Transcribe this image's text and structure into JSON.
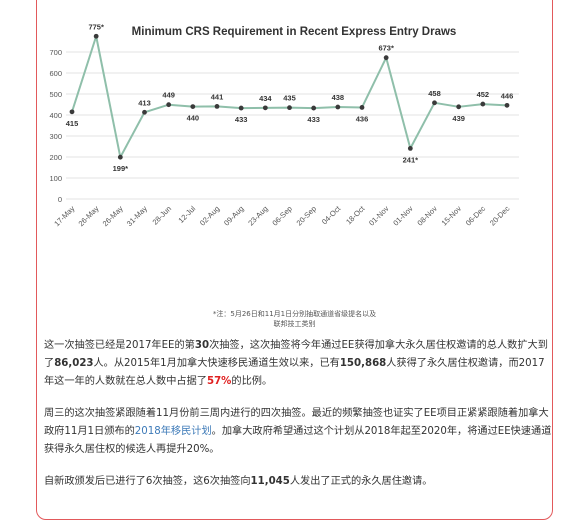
{
  "chart_data": {
    "type": "line",
    "title": "Minimum CRS Requirement in Recent Express Entry Draws",
    "categories": [
      "17-May",
      "26-May",
      "26-May",
      "31-May",
      "28-Jun",
      "12-Jul",
      "02-Aug",
      "09-Aug",
      "23-Aug",
      "06-Sep",
      "20-Sep",
      "04-Oct",
      "18-Oct",
      "01-Nov",
      "01-Nov",
      "08-Nov",
      "15-Nov",
      "06-Dec",
      "20-Dec"
    ],
    "values": [
      415,
      775,
      199,
      413,
      449,
      440,
      441,
      433,
      434,
      435,
      433,
      438,
      436,
      673,
      241,
      458,
      439,
      452,
      446
    ],
    "value_labels": [
      "415",
      "775*",
      "199*",
      "413",
      "449",
      "440",
      "441",
      "433",
      "434",
      "435",
      "433",
      "438",
      "436",
      "673*",
      "241*",
      "458",
      "439",
      "452",
      "446"
    ],
    "ylim": [
      0,
      700
    ],
    "yticks": [
      0,
      100,
      200,
      300,
      400,
      500,
      600,
      700
    ],
    "grid": true,
    "legend": "none",
    "colors": {
      "line": "#8fbfaa",
      "point": "#3a3a3a",
      "grid": "#e3e3e3",
      "label": "#333333"
    }
  },
  "note": {
    "line1": "*注：5月26日和11月1日分别抽取通道省级提名以及",
    "line2": "联邦技工类别"
  },
  "article": {
    "p1": {
      "t1": "这一次抽签已经是2017年EE的第",
      "b1": "30",
      "t2": "次抽签，这次抽签将今年通过EE获得加拿大永久居住权邀请的总人数扩大到了",
      "b2": "86,023",
      "t3": "人。从2015年1月加拿大快速移民通道生效以来，已有",
      "b3": "150,868",
      "t4": "人获得了永久居住权邀请，而2017年这一年的人数就在总人数中占据了",
      "pct": "57%",
      "t5": "的比例。"
    },
    "p2": {
      "t1": "周三的这次抽签紧跟随着11月份前三周内进行的四次抽签。最近的频繁抽签也证实了EE项目正紧紧跟随着加拿大政府11月1日颁布的",
      "link": "2018年移民计划",
      "t2": "。加拿大政府希望通过这个计划从2018年起至2020年，将通过EE快速通道获得永久居住权的候选人再提升20%。"
    },
    "p3": {
      "t1": "自新政颁发后已进行了6次抽签，这6次抽签向",
      "b1": "11,045",
      "t2": "人发出了正式的永久居住邀请。"
    }
  }
}
